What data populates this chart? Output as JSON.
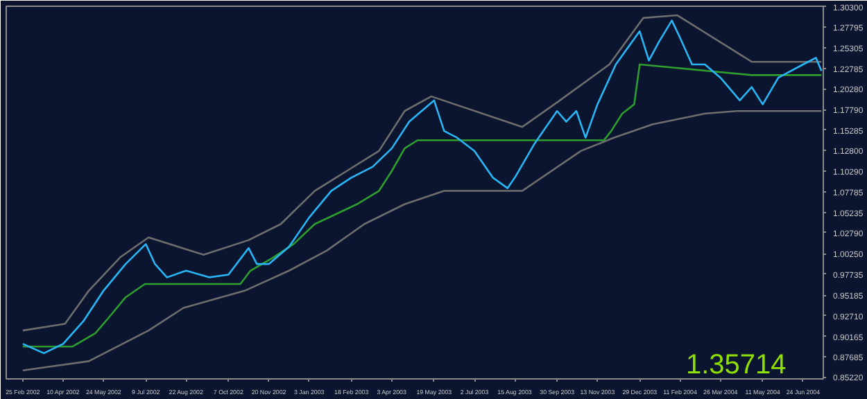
{
  "chart_data": {
    "type": "line",
    "series": [
      {
        "name": null,
        "color": "#6e6e6e",
        "x": [
          "2002-02-25",
          "2002-04-12",
          "2002-05-08",
          "2002-06-11",
          "2002-07-12",
          "2002-09-10",
          "2002-10-29",
          "2002-12-03",
          "2003-01-09",
          "2003-02-13",
          "2003-03-20",
          "2003-04-17",
          "2003-05-16",
          "2003-08-23",
          "2003-10-01",
          "2003-11-26",
          "2004-01-02",
          "2004-02-08",
          "2004-04-29",
          "2004-07-14"
        ],
        "values": [
          0.9089,
          0.917,
          0.9574,
          0.9979,
          1.0222,
          1.0011,
          1.0189,
          1.0384,
          1.0788,
          1.1031,
          1.1274,
          1.176,
          1.1938,
          1.1566,
          1.1873,
          1.2327,
          1.2893,
          1.2925,
          1.2359,
          1.2359
        ]
      },
      {
        "name": null,
        "color": "#6e6e6e",
        "x": [
          "2002-02-25",
          "2002-05-08",
          "2002-07-12",
          "2002-08-19",
          "2002-10-25",
          "2002-12-12",
          "2003-01-22",
          "2003-03-04",
          "2003-04-17",
          "2003-05-30",
          "2003-08-23",
          "2003-10-26",
          "2003-12-01",
          "2004-01-12",
          "2004-03-09",
          "2004-04-13",
          "2004-07-14"
        ],
        "values": [
          0.8603,
          0.8716,
          0.9089,
          0.9364,
          0.9574,
          0.9817,
          1.006,
          1.0384,
          1.0626,
          1.0788,
          1.0788,
          1.1274,
          1.1436,
          1.1598,
          1.1728,
          1.176,
          1.176
        ]
      },
      {
        "name": null,
        "color": "#2e9e2e",
        "x": [
          "2002-02-25",
          "2002-04-20",
          "2002-05-15",
          "2002-05-30",
          "2002-06-17",
          "2002-07-08",
          "2002-10-20",
          "2002-10-31",
          "2002-11-25",
          "2002-12-17",
          "2003-01-09",
          "2003-02-24",
          "2003-03-20",
          "2003-04-03",
          "2003-04-17",
          "2003-05-01",
          "2003-11-20",
          "2003-11-28",
          "2003-12-10",
          "2003-12-23",
          "2003-12-29",
          "2004-04-29",
          "2004-07-14"
        ],
        "values": [
          0.8894,
          0.8894,
          0.9056,
          0.925,
          0.9493,
          0.9655,
          0.9655,
          0.9817,
          0.9979,
          1.0141,
          1.0384,
          1.0626,
          1.0788,
          1.1031,
          1.1306,
          1.1404,
          1.1404,
          1.1517,
          1.1728,
          1.1841,
          1.2327,
          1.2197,
          1.2197
        ]
      },
      {
        "name": null,
        "color": "#29b6f6",
        "x": [
          "2002-02-25",
          "2002-03-20",
          "2002-04-10",
          "2002-05-02",
          "2002-05-24",
          "2002-06-17",
          "2002-07-09",
          "2002-07-19",
          "2002-08-01",
          "2002-08-22",
          "2002-09-16",
          "2002-10-07",
          "2002-10-29",
          "2002-11-07",
          "2002-11-20",
          "2002-12-12",
          "2003-01-03",
          "2003-01-27",
          "2003-02-18",
          "2003-03-13",
          "2003-04-03",
          "2003-04-22",
          "2003-05-19",
          "2003-05-30",
          "2003-06-13",
          "2003-07-02",
          "2003-07-22",
          "2003-08-07",
          "2003-08-15",
          "2003-09-05",
          "2003-09-30",
          "2003-10-10",
          "2003-10-21",
          "2003-10-31",
          "2003-11-13",
          "2003-12-03",
          "2003-12-29",
          "2004-01-08",
          "2004-01-19",
          "2004-02-02",
          "2004-02-11",
          "2004-02-24",
          "2004-03-09",
          "2004-03-26",
          "2004-04-16",
          "2004-04-29",
          "2004-05-11",
          "2004-05-28",
          "2004-06-24",
          "2004-07-08",
          "2004-07-14"
        ],
        "values": [
          0.8927,
          0.8813,
          0.8927,
          0.9202,
          0.9574,
          0.9898,
          1.0141,
          0.9898,
          0.9736,
          0.9817,
          0.9736,
          0.9768,
          1.0092,
          0.9898,
          0.9898,
          1.0108,
          1.0465,
          1.0788,
          1.095,
          1.108,
          1.1306,
          1.1631,
          1.1889,
          1.1517,
          1.1436,
          1.1274,
          1.095,
          1.0821,
          1.095,
          1.1355,
          1.176,
          1.163,
          1.176,
          1.1436,
          1.1841,
          1.2327,
          1.2731,
          1.2375,
          1.2602,
          1.2861,
          1.265,
          1.2327,
          1.2327,
          1.2165,
          1.1889,
          1.2051,
          1.1841,
          1.2165,
          1.2327,
          1.2408,
          1.2246
        ]
      }
    ],
    "xlim": [
      "2002-02-07",
      "2004-07-16"
    ],
    "xticks": [
      {
        "value": "2002-02-25",
        "label": "25 Feb 2002"
      },
      {
        "value": "2002-04-10",
        "label": "10 Apr 2002"
      },
      {
        "value": "2002-05-24",
        "label": "24 May 2002"
      },
      {
        "value": "2002-07-09",
        "label": "9 Jul 2002"
      },
      {
        "value": "2002-08-22",
        "label": "22 Aug 2002"
      },
      {
        "value": "2002-10-07",
        "label": "7 Oct 2002"
      },
      {
        "value": "2002-11-20",
        "label": "20 Nov 2002"
      },
      {
        "value": "2003-01-03",
        "label": "3 Jan 2003"
      },
      {
        "value": "2003-02-18",
        "label": "18 Feb 2003"
      },
      {
        "value": "2003-04-03",
        "label": "3 Apr 2003"
      },
      {
        "value": "2003-05-19",
        "label": "19 May 2003"
      },
      {
        "value": "2003-07-02",
        "label": "2 Jul 2003"
      },
      {
        "value": "2003-08-15",
        "label": "15 Aug 2003"
      },
      {
        "value": "2003-09-30",
        "label": "30 Sep 2003"
      },
      {
        "value": "2003-11-13",
        "label": "13 Nov 2003"
      },
      {
        "value": "2003-12-29",
        "label": "29 Dec 2003"
      },
      {
        "value": "2004-02-11",
        "label": "11 Feb 2004"
      },
      {
        "value": "2004-03-26",
        "label": "26 Mar 2004"
      },
      {
        "value": "2004-05-11",
        "label": "11 May 2004"
      },
      {
        "value": "2004-06-24",
        "label": "24 Jun 2004"
      }
    ],
    "ylim": [
      0.85,
      1.3035
    ],
    "yticks": [
      {
        "value": 1.303,
        "label": "1.30300"
      },
      {
        "value": 1.27795,
        "label": "1.27795"
      },
      {
        "value": 1.25305,
        "label": "1.25305"
      },
      {
        "value": 1.22785,
        "label": "1.22785"
      },
      {
        "value": 1.2028,
        "label": "1.20280"
      },
      {
        "value": 1.1779,
        "label": "1.17790"
      },
      {
        "value": 1.15285,
        "label": "1.15285"
      },
      {
        "value": 1.128,
        "label": "1.12800"
      },
      {
        "value": 1.1029,
        "label": "1.10290"
      },
      {
        "value": 1.07785,
        "label": "1.07785"
      },
      {
        "value": 1.05235,
        "label": "1.05235"
      },
      {
        "value": 1.0279,
        "label": "1.02790"
      },
      {
        "value": 1.0025,
        "label": "1.00250"
      },
      {
        "value": 0.97735,
        "label": "0.97735"
      },
      {
        "value": 0.95185,
        "label": "0.95185"
      },
      {
        "value": 0.9271,
        "label": "0.92710"
      },
      {
        "value": 0.90165,
        "label": "0.90165"
      },
      {
        "value": 0.87685,
        "label": "0.87685"
      },
      {
        "value": 0.8522,
        "label": "0.85220"
      }
    ],
    "annotations": [
      "1.35714"
    ],
    "grid": false,
    "line_style": "solid",
    "marker": "none"
  }
}
